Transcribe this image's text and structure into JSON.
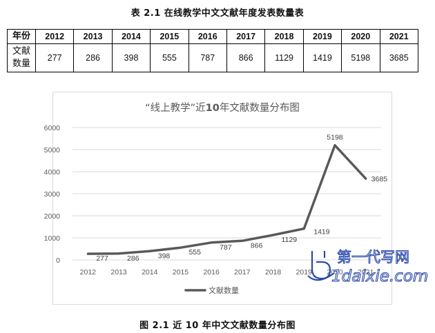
{
  "table": {
    "title": "表 2.1 在线教学中文文献年度发表数量表",
    "header_label": "年份",
    "value_label_line1": "文献",
    "value_label_line2": "数量",
    "years": [
      "2012",
      "2013",
      "2014",
      "2015",
      "2016",
      "2017",
      "2018",
      "2019",
      "2020",
      "2021"
    ],
    "counts": [
      "277",
      "286",
      "398",
      "555",
      "787",
      "866",
      "1129",
      "1419",
      "5198",
      "3685"
    ]
  },
  "chart_data": {
    "type": "line",
    "title_part1": "“线上教学”近",
    "title_part2": "10",
    "title_part3": "年文献数量分布图",
    "x": [
      "2012",
      "2013",
      "2014",
      "2015",
      "2016",
      "2017",
      "2018",
      "2019",
      "2020",
      "2021"
    ],
    "series": [
      {
        "name": "文献数量",
        "values": [
          277,
          286,
          398,
          555,
          787,
          866,
          1129,
          1419,
          5198,
          3685
        ]
      }
    ],
    "ylim": [
      0,
      6000
    ],
    "yticks": [
      0,
      1000,
      2000,
      3000,
      4000,
      5000,
      6000
    ],
    "grid": true,
    "legend": "bottom",
    "line_color": "#595959"
  },
  "caption": "图 2.1 近 10 年中文文献数量分布图",
  "watermark": {
    "line1": "第一代写网",
    "line2": "1daixie.com",
    "color": "#2b4aa8"
  }
}
